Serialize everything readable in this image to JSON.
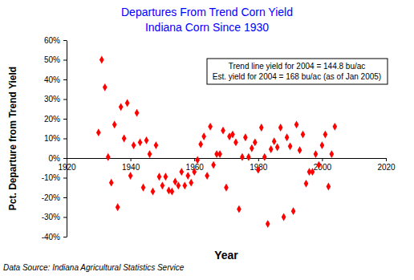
{
  "chart_data": {
    "type": "scatter",
    "title": "Departures From Trend Corn Yield",
    "subtitle": "Indiana Corn Since 1930",
    "x_label": "Year",
    "y_label": "Pct. Departure from Trend Yield",
    "annotations": [
      "Trend line yield for 2004 = 144.8 bu/ac",
      "Est. yield for 2004 = 168 bu/ac (as of Jan 2005)"
    ],
    "source": "Data Source: Indiana Agricultural Statistics Service",
    "x": [
      1930,
      1931,
      1932,
      1933,
      1934,
      1935,
      1936,
      1937,
      1938,
      1939,
      1940,
      1941,
      1942,
      1943,
      1944,
      1945,
      1946,
      1947,
      1948,
      1949,
      1950,
      1951,
      1952,
      1953,
      1954,
      1955,
      1956,
      1957,
      1958,
      1959,
      1960,
      1961,
      1962,
      1963,
      1964,
      1965,
      1966,
      1967,
      1968,
      1969,
      1970,
      1971,
      1972,
      1973,
      1974,
      1975,
      1976,
      1977,
      1978,
      1979,
      1980,
      1981,
      1982,
      1983,
      1984,
      1985,
      1986,
      1987,
      1988,
      1989,
      1990,
      1991,
      1992,
      1993,
      1994,
      1995,
      1996,
      1997,
      1998,
      1999,
      2000,
      2001,
      2002,
      2003,
      2004
    ],
    "values": [
      13,
      50,
      36,
      0.5,
      -12.5,
      17,
      -25,
      26,
      10,
      28,
      -9,
      6.5,
      23,
      8,
      -15,
      9,
      2,
      -17,
      6.5,
      -9.5,
      -14,
      -9.5,
      -16.5,
      -17,
      -12,
      -14,
      -7,
      -14,
      -9,
      -12.5,
      -7,
      -1,
      7,
      11,
      -9,
      16,
      -3.5,
      2,
      2,
      14,
      -15,
      11,
      12,
      8,
      -26,
      0.5,
      10.5,
      0.5,
      5,
      8,
      -6,
      15.5,
      0.5,
      -33.5,
      4.5,
      8.5,
      5.5,
      15.5,
      -30,
      10.5,
      6,
      -27,
      17,
      4,
      12,
      -13,
      -7,
      -7,
      2,
      -3.5,
      6.5,
      12,
      -14.5,
      2,
      16
    ],
    "color": "#ff0000",
    "marker": "diamond",
    "xlim": [
      1920,
      2020
    ],
    "xticks": [
      1920,
      1940,
      1960,
      1980,
      2000,
      2020
    ],
    "ylim": [
      -40,
      60
    ],
    "yticks": [
      {
        "value": -40,
        "label": "-40%"
      },
      {
        "value": -30,
        "label": "-30%"
      },
      {
        "value": -20,
        "label": "-20%"
      },
      {
        "value": -10,
        "label": "-10%"
      },
      {
        "value": 0,
        "label": "0%"
      },
      {
        "value": 10,
        "label": "10%"
      },
      {
        "value": 20,
        "label": "20%"
      },
      {
        "value": 30,
        "label": "30%"
      },
      {
        "value": 40,
        "label": "40%"
      },
      {
        "value": 50,
        "label": "50%"
      },
      {
        "value": 60,
        "label": "60%"
      }
    ],
    "grid": false
  }
}
